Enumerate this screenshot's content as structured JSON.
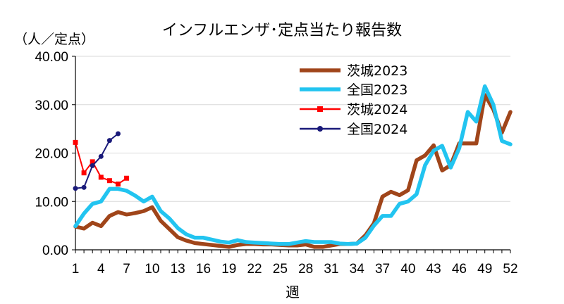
{
  "chart_data": {
    "type": "line",
    "title": "インフルエンザ･定点当たり報告数",
    "ylabel": "（人／定点）",
    "xlabel": "週",
    "ylim": [
      0,
      40
    ],
    "xlim": [
      1,
      52
    ],
    "yticks": [
      "0.00",
      "10.00",
      "20.00",
      "30.00",
      "40.00"
    ],
    "xticks": [
      1,
      4,
      7,
      10,
      13,
      16,
      19,
      22,
      25,
      28,
      31,
      34,
      37,
      40,
      43,
      46,
      49,
      52
    ],
    "grid": true,
    "legend_position": "top-right",
    "series": [
      {
        "name": "茨城2023",
        "color": "#A0451A",
        "marker": "none",
        "x": [
          1,
          2,
          3,
          4,
          5,
          6,
          7,
          8,
          9,
          10,
          11,
          12,
          13,
          14,
          15,
          16,
          17,
          18,
          19,
          20,
          21,
          22,
          23,
          24,
          25,
          26,
          27,
          28,
          29,
          30,
          31,
          32,
          33,
          34,
          35,
          36,
          37,
          38,
          39,
          40,
          41,
          42,
          43,
          44,
          45,
          46,
          47,
          48,
          49,
          50,
          51,
          52
        ],
        "values": [
          4.8,
          4.4,
          5.6,
          4.9,
          7.0,
          7.8,
          7.3,
          7.6,
          8.0,
          8.8,
          6.0,
          4.3,
          2.6,
          1.9,
          1.4,
          1.2,
          1.0,
          0.8,
          0.6,
          1.0,
          1.2,
          1.2,
          1.1,
          1.1,
          1.0,
          0.9,
          0.9,
          1.1,
          0.6,
          0.6,
          0.9,
          1.2,
          1.2,
          1.3,
          3.0,
          5.5,
          11.0,
          12.0,
          11.3,
          12.3,
          18.5,
          19.5,
          21.6,
          16.4,
          17.5,
          22.0,
          22.0,
          22.0,
          32.0,
          29.0,
          24.2,
          28.5
        ]
      },
      {
        "name": "全国2023",
        "color": "#22C4F0",
        "marker": "none",
        "x": [
          1,
          2,
          3,
          4,
          5,
          6,
          7,
          8,
          9,
          10,
          11,
          12,
          13,
          14,
          15,
          16,
          17,
          18,
          19,
          20,
          21,
          22,
          23,
          24,
          25,
          26,
          27,
          28,
          29,
          30,
          31,
          32,
          33,
          34,
          35,
          36,
          37,
          38,
          39,
          40,
          41,
          42,
          43,
          44,
          45,
          46,
          47,
          48,
          49,
          50,
          51,
          52
        ],
        "values": [
          4.9,
          7.5,
          9.5,
          10.0,
          12.6,
          12.6,
          12.2,
          11.2,
          10.0,
          11.0,
          8.0,
          6.5,
          4.5,
          3.2,
          2.5,
          2.5,
          2.1,
          1.7,
          1.5,
          2.0,
          1.6,
          1.5,
          1.4,
          1.3,
          1.2,
          1.2,
          1.5,
          1.8,
          1.6,
          1.6,
          1.6,
          1.3,
          1.2,
          1.3,
          2.5,
          5.0,
          7.0,
          7.0,
          9.5,
          10.0,
          11.5,
          17.5,
          20.5,
          21.5,
          17.0,
          21.0,
          28.5,
          26.5,
          33.8,
          30.0,
          22.5,
          21.8
        ]
      },
      {
        "name": "茨城2024",
        "color": "#FF0000",
        "marker": "square",
        "x": [
          1,
          2,
          3,
          4,
          5,
          6,
          7
        ],
        "values": [
          22.2,
          15.9,
          18.2,
          15.0,
          14.3,
          13.6,
          14.8
        ]
      },
      {
        "name": "全国2024",
        "color": "#1A1A7A",
        "marker": "circle",
        "x": [
          1,
          2,
          3,
          4,
          5,
          6
        ],
        "values": [
          12.7,
          12.9,
          17.4,
          19.3,
          22.6,
          24.0
        ]
      }
    ]
  }
}
